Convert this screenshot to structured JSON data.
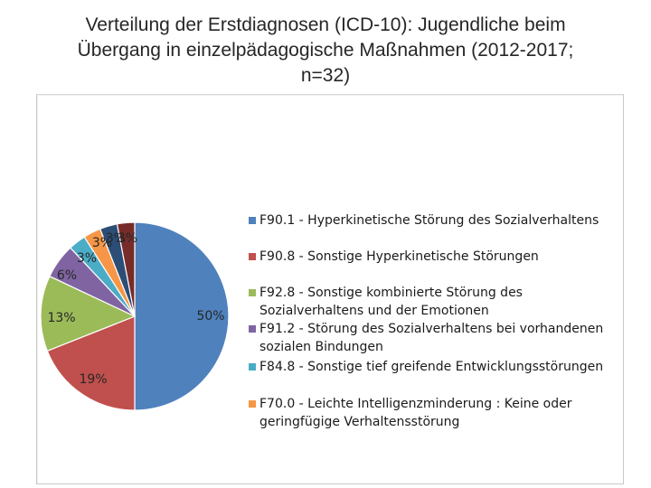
{
  "slide": {
    "title_line1": "Verteilung der Erstdiagnosen (ICD-10): Jugendliche beim",
    "title_line2": "Übergang in einzelpädagogische Maßnahmen (2012-2017;",
    "title_line3": "n=32)"
  },
  "chart_data": {
    "type": "pie",
    "title": "",
    "series": [
      {
        "name": "F90.1 - Hyperkinetische Störung des Sozialverhaltens",
        "label": "50%",
        "value": 50,
        "color": "#4F81BD"
      },
      {
        "name": "F90.8 - Sonstige Hyperkinetische Störungen",
        "label": "19%",
        "value": 19,
        "color": "#C0504D"
      },
      {
        "name": "F92.8 - Sonstige kombinierte Störung des Sozialverhaltens und der Emotionen",
        "label": "13%",
        "value": 13,
        "color": "#9BBB59"
      },
      {
        "name": "F91.2 - Störung des Sozialverhaltens bei vorhandenen sozialen Bindungen",
        "label": "6%",
        "value": 6,
        "color": "#8064A2"
      },
      {
        "name": "F84.8 - Sonstige tief greifende Entwicklungsstörungen",
        "label": "3%",
        "value": 3,
        "color": "#4BACC6"
      },
      {
        "name": "F70.0 - Leichte Intelligenzminderung : Keine oder geringfügige Verhaltensstörung",
        "label": "3%",
        "value": 3,
        "color": "#F79646"
      },
      {
        "name": "",
        "label": "3%",
        "value": 3,
        "color": "#2C4D75"
      },
      {
        "name": "",
        "label": "3%",
        "value": 3,
        "color": "#772C2A"
      }
    ],
    "legend_position": "right"
  }
}
